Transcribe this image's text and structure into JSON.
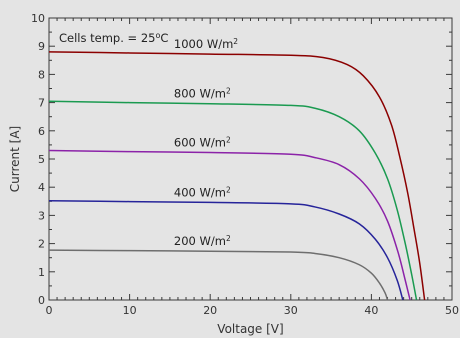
{
  "chart_data": {
    "type": "line",
    "xlabel": "Voltage [V]",
    "ylabel": "Current [A]",
    "xlim": [
      0,
      50
    ],
    "ylim": [
      0,
      10
    ],
    "x_ticks": [
      0,
      10,
      20,
      30,
      40,
      50
    ],
    "y_ticks": [
      0,
      1,
      2,
      3,
      4,
      5,
      6,
      7,
      8,
      9,
      10
    ],
    "grid": false,
    "annotation": {
      "text": "Cells temp. = 25",
      "sup": "o",
      "unit": "C"
    },
    "series": [
      {
        "name": "1000 W/m",
        "sup": "2",
        "color": "#8b0000",
        "points": [
          [
            0,
            8.8
          ],
          [
            10,
            8.76
          ],
          [
            20,
            8.72
          ],
          [
            30,
            8.68
          ],
          [
            34,
            8.6
          ],
          [
            37,
            8.35
          ],
          [
            39,
            7.95
          ],
          [
            41,
            7.2
          ],
          [
            42.5,
            6.2
          ],
          [
            43.5,
            5.1
          ],
          [
            44.5,
            3.8
          ],
          [
            45.3,
            2.5
          ],
          [
            46,
            1.3
          ],
          [
            46.6,
            0
          ]
        ]
      },
      {
        "name": "800 W/m",
        "sup": "2",
        "color": "#1a9a50",
        "points": [
          [
            0,
            7.05
          ],
          [
            10,
            7.0
          ],
          [
            20,
            6.96
          ],
          [
            30,
            6.9
          ],
          [
            33,
            6.8
          ],
          [
            36,
            6.5
          ],
          [
            38.5,
            6.0
          ],
          [
            40.5,
            5.2
          ],
          [
            42,
            4.3
          ],
          [
            43.2,
            3.2
          ],
          [
            44.2,
            2.0
          ],
          [
            45,
            0.9
          ],
          [
            45.6,
            0
          ]
        ]
      },
      {
        "name": "600 W/m",
        "sup": "2",
        "color": "#8b22a8",
        "points": [
          [
            0,
            5.3
          ],
          [
            10,
            5.26
          ],
          [
            20,
            5.23
          ],
          [
            30,
            5.17
          ],
          [
            33,
            5.05
          ],
          [
            36,
            4.8
          ],
          [
            38.5,
            4.3
          ],
          [
            40.5,
            3.6
          ],
          [
            42,
            2.8
          ],
          [
            43.3,
            1.7
          ],
          [
            44.2,
            0.7
          ],
          [
            44.8,
            0
          ]
        ]
      },
      {
        "name": "400 W/m",
        "sup": "2",
        "color": "#26249a",
        "points": [
          [
            0,
            3.52
          ],
          [
            10,
            3.49
          ],
          [
            20,
            3.46
          ],
          [
            30,
            3.41
          ],
          [
            33,
            3.3
          ],
          [
            36,
            3.05
          ],
          [
            38.5,
            2.7
          ],
          [
            40.5,
            2.15
          ],
          [
            42,
            1.5
          ],
          [
            43.2,
            0.7
          ],
          [
            43.9,
            0
          ]
        ]
      },
      {
        "name": "200 W/m",
        "sup": "2",
        "color": "#6e6e6e",
        "points": [
          [
            0,
            1.77
          ],
          [
            10,
            1.75
          ],
          [
            20,
            1.73
          ],
          [
            30,
            1.7
          ],
          [
            33,
            1.65
          ],
          [
            36,
            1.5
          ],
          [
            38.5,
            1.25
          ],
          [
            40,
            0.95
          ],
          [
            41,
            0.6
          ],
          [
            41.7,
            0.25
          ],
          [
            42,
            0
          ]
        ]
      }
    ]
  }
}
